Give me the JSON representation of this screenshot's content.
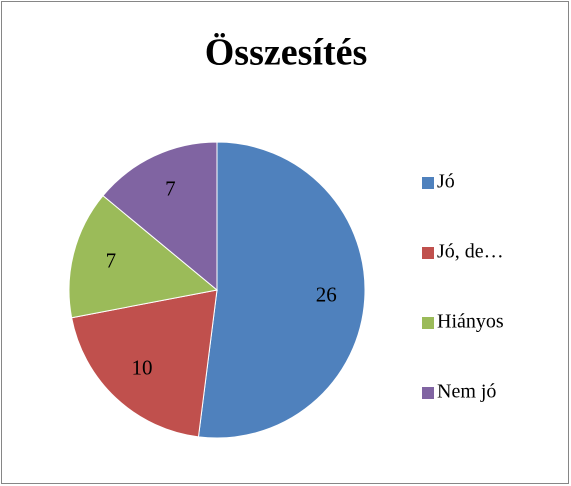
{
  "chart_data": {
    "type": "pie",
    "title": "Összesítés",
    "categories": [
      "Jó",
      "Jó, de…",
      "Hiányos",
      "Nem jó"
    ],
    "values": [
      26,
      10,
      7,
      7
    ],
    "colors": [
      "#4f81bd",
      "#c0504d",
      "#9bbb59",
      "#8064a2"
    ],
    "legend": "right"
  }
}
